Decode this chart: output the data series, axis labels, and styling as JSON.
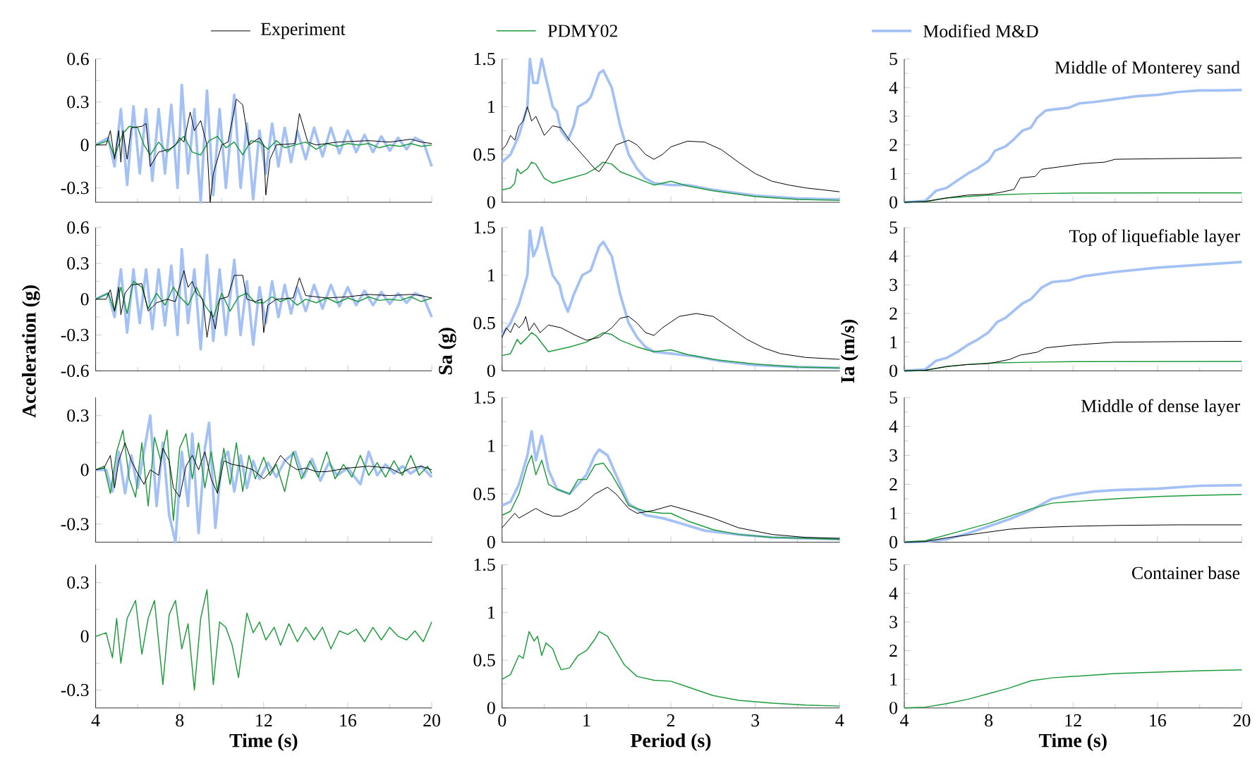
{
  "chart_data": [
    {
      "type": "line",
      "legend": "top",
      "tick_labels": "y",
      "xlim": [
        4,
        20
      ],
      "xticks": [
        4,
        8,
        12,
        16,
        20
      ],
      "ylim": [
        -0.4,
        0.6
      ],
      "yticks": [
        -0.3,
        0,
        0.3,
        0.6
      ],
      "series": [
        {
          "name": "Experiment",
          "color": "#000000",
          "x": [
            4,
            4.5,
            4.7,
            4.9,
            5.1,
            5.2,
            5.3,
            5.5,
            5.7,
            6.2,
            6.4,
            6.5,
            6.6,
            7,
            7.5,
            7.8,
            8.0,
            8.2,
            8.5,
            8.7,
            9.0,
            9.3,
            9.45,
            9.6,
            10,
            10.3,
            10.7,
            11,
            11.3,
            11.8,
            12,
            12.1,
            12.3,
            12.6,
            13.5,
            13.7,
            14.1,
            14.5,
            15.5,
            17,
            18,
            19,
            19.5,
            20
          ],
          "values": [
            0,
            0,
            0.1,
            -0.1,
            0.1,
            -0.12,
            0.1,
            -0.1,
            0.12,
            0.13,
            0.15,
            0,
            -0.15,
            -0.05,
            -0.03,
            0,
            0.05,
            0.02,
            0.23,
            0.1,
            0.17,
            0,
            -0.4,
            -0.2,
            0,
            0.02,
            0.32,
            0.28,
            0,
            0.05,
            0,
            -0.35,
            -0.1,
            0,
            0.01,
            0.22,
            0.02,
            0,
            0.02,
            0.03,
            0.02,
            0.04,
            0.02,
            0.01
          ]
        },
        {
          "name": "PDMY02",
          "color": "#1e9b3c",
          "x": [
            4,
            4.6,
            4.9,
            5.3,
            5.6,
            6.0,
            6.3,
            6.6,
            7.0,
            7.4,
            7.8,
            8.2,
            8.6,
            9.0,
            9.4,
            9.8,
            10.2,
            10.6,
            11.0,
            11.4,
            11.8,
            12.2,
            12.6,
            13.0,
            13.5,
            14.0,
            14.5,
            15.0,
            15.5,
            16.0,
            16.5,
            17.0,
            17.5,
            18.0,
            18.5,
            19.0,
            19.5,
            20
          ],
          "values": [
            0,
            0.03,
            -0.08,
            0.08,
            0.13,
            0.12,
            0,
            -0.07,
            0.02,
            -0.05,
            0,
            0.06,
            -0.05,
            -0.07,
            0.03,
            0.06,
            -0.02,
            0.02,
            -0.07,
            0.03,
            0.02,
            -0.03,
            0.03,
            -0.02,
            0,
            0.02,
            -0.03,
            0.01,
            -0.01,
            0.01,
            0,
            0.01,
            -0.02,
            0,
            -0.01,
            0.01,
            -0.01,
            0
          ]
        },
        {
          "name": "Modified M&D",
          "color": "#a3c1f5",
          "x": [
            4,
            4.6,
            4.9,
            5.2,
            5.5,
            5.8,
            6.1,
            6.4,
            6.7,
            7.0,
            7.3,
            7.6,
            7.9,
            8.1,
            8.4,
            8.7,
            9.0,
            9.3,
            9.6,
            9.9,
            10.2,
            10.6,
            10.9,
            11.2,
            11.5,
            11.8,
            12.1,
            12.4,
            12.7,
            13.0,
            13.3,
            13.6,
            14.0,
            14.4,
            14.8,
            15.2,
            15.6,
            16.0,
            16.4,
            16.8,
            17.2,
            17.6,
            18.0,
            18.4,
            18.8,
            19.2,
            19.6,
            20
          ],
          "values": [
            0,
            0.05,
            -0.15,
            0.25,
            -0.28,
            0.27,
            -0.2,
            0.25,
            -0.25,
            0.25,
            -0.2,
            0.28,
            -0.3,
            0.42,
            -0.2,
            0.25,
            -0.4,
            0.38,
            -0.35,
            0.25,
            -0.3,
            0.35,
            -0.3,
            0.15,
            -0.38,
            0.1,
            -0.2,
            0.15,
            -0.15,
            0.12,
            -0.12,
            0.1,
            -0.1,
            0.12,
            -0.08,
            0.12,
            -0.06,
            0.1,
            -0.05,
            0.07,
            -0.05,
            0.06,
            -0.04,
            0.05,
            -0.03,
            0.05,
            0.02,
            -0.15
          ]
        }
      ]
    },
    {
      "type": "line",
      "tick_labels": "y",
      "xlim": [
        0,
        4
      ],
      "xticks": [
        0,
        1,
        2,
        3,
        4
      ],
      "ylim": [
        0,
        1.5
      ],
      "yticks": [
        0,
        0.5,
        1,
        1.5
      ],
      "series": [
        {
          "color": "#000000",
          "x": [
            0,
            0.05,
            0.1,
            0.15,
            0.2,
            0.25,
            0.3,
            0.35,
            0.4,
            0.5,
            0.6,
            0.7,
            0.8,
            0.9,
            1.0,
            1.1,
            1.15,
            1.25,
            1.35,
            1.5,
            1.6,
            1.7,
            1.8,
            1.9,
            2.0,
            2.2,
            2.4,
            2.6,
            2.8,
            3.0,
            3.2,
            3.4,
            3.6,
            3.8,
            4.0
          ],
          "values": [
            0.55,
            0.6,
            0.7,
            0.65,
            0.8,
            0.85,
            1.0,
            0.85,
            0.9,
            0.7,
            0.8,
            0.78,
            0.65,
            0.55,
            0.45,
            0.35,
            0.32,
            0.45,
            0.6,
            0.65,
            0.6,
            0.5,
            0.45,
            0.5,
            0.58,
            0.64,
            0.63,
            0.55,
            0.42,
            0.3,
            0.22,
            0.18,
            0.15,
            0.13,
            0.11
          ]
        },
        {
          "color": "#1e9b3c",
          "x": [
            0,
            0.1,
            0.15,
            0.18,
            0.22,
            0.3,
            0.35,
            0.4,
            0.5,
            0.6,
            0.8,
            1.0,
            1.1,
            1.2,
            1.3,
            1.4,
            1.6,
            1.8,
            2.0,
            2.2,
            2.5,
            3.0,
            3.5,
            4.0
          ],
          "values": [
            0.13,
            0.15,
            0.2,
            0.35,
            0.3,
            0.35,
            0.42,
            0.4,
            0.25,
            0.2,
            0.25,
            0.3,
            0.35,
            0.42,
            0.4,
            0.32,
            0.25,
            0.18,
            0.22,
            0.17,
            0.12,
            0.06,
            0.03,
            0.02
          ]
        },
        {
          "color": "#a3c1f5",
          "x": [
            0,
            0.1,
            0.2,
            0.3,
            0.33,
            0.37,
            0.42,
            0.47,
            0.52,
            0.6,
            0.65,
            0.7,
            0.78,
            0.85,
            0.9,
            1.0,
            1.05,
            1.15,
            1.2,
            1.3,
            1.4,
            1.5,
            1.6,
            1.7,
            1.8,
            2.0,
            2.2,
            2.5,
            3.0,
            3.5,
            4.0
          ],
          "values": [
            0.42,
            0.5,
            0.7,
            1.0,
            1.5,
            1.25,
            1.25,
            1.5,
            1.3,
            1.0,
            0.95,
            0.75,
            0.65,
            0.8,
            1.0,
            1.05,
            1.1,
            1.35,
            1.38,
            1.2,
            0.8,
            0.5,
            0.35,
            0.25,
            0.2,
            0.18,
            0.18,
            0.13,
            0.07,
            0.04,
            0.03
          ]
        }
      ]
    },
    {
      "type": "line",
      "tick_labels": "y",
      "xlim": [
        4,
        20
      ],
      "xticks": [
        4,
        8,
        12,
        16,
        20
      ],
      "ylim": [
        0,
        5
      ],
      "yticks": [
        0,
        1,
        2,
        3,
        4,
        5
      ],
      "annotations": [
        "Middle of Monterey sand"
      ],
      "series": [
        {
          "color": "#000000",
          "x": [
            4,
            5,
            6,
            7,
            8,
            8.6,
            9.2,
            9.5,
            10.2,
            10.5,
            11.5,
            12.5,
            13.5,
            14,
            16,
            20
          ],
          "values": [
            0,
            0.03,
            0.15,
            0.25,
            0.28,
            0.35,
            0.45,
            0.85,
            0.9,
            1.15,
            1.25,
            1.35,
            1.4,
            1.5,
            1.52,
            1.55
          ]
        },
        {
          "color": "#1e9b3c",
          "x": [
            4,
            5,
            6,
            7,
            8,
            10,
            12,
            16,
            20
          ],
          "values": [
            0,
            0.02,
            0.15,
            0.2,
            0.25,
            0.3,
            0.32,
            0.33,
            0.33
          ]
        },
        {
          "color": "#a3c1f5",
          "x": [
            4,
            5,
            5.5,
            6,
            6.5,
            7,
            7.5,
            8,
            8.3,
            8.8,
            9.2,
            9.6,
            10,
            10.3,
            10.7,
            11.2,
            11.8,
            12.3,
            13,
            14,
            15,
            16,
            17,
            18,
            19,
            20
          ],
          "values": [
            0,
            0.05,
            0.4,
            0.5,
            0.75,
            1.0,
            1.2,
            1.45,
            1.8,
            1.95,
            2.2,
            2.5,
            2.6,
            2.95,
            3.2,
            3.25,
            3.3,
            3.45,
            3.5,
            3.6,
            3.7,
            3.75,
            3.85,
            3.9,
            3.9,
            3.92
          ]
        }
      ]
    },
    {
      "type": "line",
      "tick_labels": "y",
      "xlim": [
        4,
        20
      ],
      "xticks": [
        4,
        8,
        12,
        16,
        20
      ],
      "ylim": [
        -0.6,
        0.6
      ],
      "yticks": [
        -0.6,
        -0.3,
        0,
        0.3,
        0.6
      ],
      "ylabel": "Acceleration (g)",
      "series": [
        {
          "color": "#000000",
          "x": [
            4,
            4.5,
            4.7,
            4.9,
            5.1,
            5.2,
            5.4,
            5.7,
            6.2,
            6.5,
            6.9,
            7.4,
            7.8,
            8.2,
            8.4,
            8.6,
            8.8,
            9.1,
            9.3,
            9.5,
            9.7,
            9.9,
            10.3,
            10.6,
            11.0,
            11.2,
            11.6,
            11.9,
            12.0,
            12.2,
            12.6,
            13.4,
            13.7,
            14.0,
            15,
            16,
            17,
            18,
            19,
            19.5,
            20
          ],
          "values": [
            0,
            0,
            0.08,
            -0.1,
            0.1,
            -0.13,
            0.05,
            0.12,
            0.13,
            -0.1,
            -0.03,
            0,
            -0.02,
            0.24,
            0.1,
            0.15,
            0.05,
            0,
            -0.32,
            -0.1,
            -0.25,
            0,
            0.02,
            0.2,
            0.2,
            0,
            -0.02,
            0,
            -0.28,
            -0.05,
            0,
            0.01,
            0.18,
            0.03,
            0.01,
            0.02,
            0.04,
            0.03,
            0.04,
            0.03,
            0.01
          ]
        },
        {
          "color": "#1e9b3c",
          "x": [
            4,
            4.6,
            4.9,
            5.2,
            5.5,
            5.8,
            6.2,
            6.5,
            6.9,
            7.3,
            7.7,
            8.0,
            8.4,
            8.8,
            9.2,
            9.6,
            10.0,
            10.4,
            10.8,
            11.2,
            11.6,
            12.0,
            12.4,
            12.8,
            13.2,
            13.6,
            14,
            14.5,
            15,
            15.5,
            16,
            16.5,
            17,
            17.5,
            18,
            18.5,
            19,
            19.5,
            20
          ],
          "values": [
            0,
            0.05,
            -0.1,
            0.1,
            -0.12,
            0.15,
            0.1,
            -0.08,
            0.05,
            -0.05,
            0.1,
            0.02,
            -0.05,
            0.1,
            -0.05,
            -0.15,
            0.05,
            -0.1,
            0.02,
            0.05,
            -0.03,
            -0.03,
            0.02,
            -0.02,
            0.01,
            -0.05,
            0,
            -0.03,
            0.01,
            -0.03,
            0.01,
            -0.02,
            0.02,
            -0.01,
            0,
            -0.01,
            0.02,
            -0.02,
            0.01
          ]
        },
        {
          "color": "#a3c1f5",
          "x": [
            4,
            4.6,
            4.9,
            5.2,
            5.5,
            5.8,
            6.1,
            6.4,
            6.7,
            7.0,
            7.3,
            7.6,
            7.9,
            8.1,
            8.4,
            8.7,
            9.0,
            9.3,
            9.6,
            9.9,
            10.2,
            10.6,
            10.9,
            11.2,
            11.5,
            11.8,
            12.1,
            12.4,
            12.7,
            13.0,
            13.3,
            13.6,
            14.0,
            14.4,
            14.8,
            15.2,
            15.6,
            16.0,
            16.4,
            16.8,
            17.2,
            17.6,
            18.0,
            18.4,
            18.8,
            19.2,
            19.6,
            20
          ],
          "values": [
            0,
            0.05,
            -0.15,
            0.25,
            -0.28,
            0.25,
            -0.2,
            0.25,
            -0.25,
            0.25,
            -0.22,
            0.28,
            -0.3,
            0.42,
            -0.2,
            0.25,
            -0.42,
            0.37,
            -0.35,
            0.25,
            -0.3,
            0.33,
            -0.3,
            0.15,
            -0.38,
            0.1,
            -0.2,
            0.15,
            -0.15,
            0.12,
            -0.12,
            0.1,
            -0.1,
            0.12,
            -0.08,
            0.12,
            -0.06,
            0.1,
            -0.05,
            0.07,
            -0.05,
            0.06,
            -0.04,
            0.05,
            -0.03,
            0.05,
            0.02,
            -0.15
          ]
        }
      ]
    },
    {
      "type": "line",
      "tick_labels": "y",
      "xlim": [
        0,
        4
      ],
      "xticks": [
        0,
        1,
        2,
        3,
        4
      ],
      "ylim": [
        0,
        1.5
      ],
      "yticks": [
        0,
        0.5,
        1,
        1.5
      ],
      "ylabel": "Sa (g)",
      "series": [
        {
          "color": "#000000",
          "x": [
            0,
            0.05,
            0.1,
            0.15,
            0.2,
            0.25,
            0.28,
            0.32,
            0.38,
            0.45,
            0.55,
            0.7,
            0.85,
            1.0,
            1.15,
            1.3,
            1.4,
            1.5,
            1.6,
            1.7,
            1.8,
            1.9,
            2.1,
            2.3,
            2.5,
            2.7,
            2.9,
            3.1,
            3.3,
            3.6,
            4.0
          ],
          "values": [
            0.35,
            0.45,
            0.4,
            0.5,
            0.45,
            0.5,
            0.57,
            0.42,
            0.5,
            0.4,
            0.48,
            0.45,
            0.38,
            0.32,
            0.35,
            0.45,
            0.55,
            0.57,
            0.5,
            0.4,
            0.37,
            0.45,
            0.57,
            0.6,
            0.57,
            0.45,
            0.33,
            0.24,
            0.18,
            0.14,
            0.12
          ]
        },
        {
          "color": "#1e9b3c",
          "x": [
            0,
            0.1,
            0.18,
            0.22,
            0.3,
            0.35,
            0.4,
            0.55,
            0.8,
            1.0,
            1.2,
            1.3,
            1.4,
            1.6,
            1.8,
            2.0,
            2.2,
            2.5,
            3.0,
            3.5,
            4.0
          ],
          "values": [
            0.16,
            0.18,
            0.33,
            0.28,
            0.35,
            0.4,
            0.37,
            0.2,
            0.25,
            0.3,
            0.4,
            0.38,
            0.32,
            0.25,
            0.2,
            0.22,
            0.17,
            0.12,
            0.07,
            0.04,
            0.03
          ]
        },
        {
          "color": "#a3c1f5",
          "x": [
            0,
            0.1,
            0.2,
            0.3,
            0.33,
            0.37,
            0.42,
            0.47,
            0.53,
            0.6,
            0.68,
            0.72,
            0.78,
            0.85,
            0.95,
            1.05,
            1.15,
            1.2,
            1.3,
            1.4,
            1.5,
            1.6,
            1.7,
            1.8,
            2.0,
            2.3,
            2.6,
            3.0,
            3.5,
            4.0
          ],
          "values": [
            0.38,
            0.5,
            0.7,
            1.0,
            1.47,
            1.2,
            1.3,
            1.5,
            1.25,
            1.0,
            0.9,
            0.75,
            0.62,
            0.8,
            1.0,
            1.05,
            1.3,
            1.35,
            1.2,
            0.8,
            0.5,
            0.35,
            0.25,
            0.2,
            0.18,
            0.15,
            0.1,
            0.06,
            0.04,
            0.03
          ]
        }
      ]
    },
    {
      "type": "line",
      "tick_labels": "y",
      "xlim": [
        4,
        20
      ],
      "xticks": [
        4,
        8,
        12,
        16,
        20
      ],
      "ylim": [
        0,
        5
      ],
      "yticks": [
        0,
        1,
        2,
        3,
        4,
        5
      ],
      "ylabel": "Ia (m/s)",
      "annotations": [
        "Top of liquefiable layer"
      ],
      "series": [
        {
          "color": "#000000",
          "x": [
            4,
            5,
            6,
            7,
            8,
            9,
            9.5,
            10.3,
            10.7,
            12,
            14,
            17,
            20
          ],
          "values": [
            0,
            0.02,
            0.15,
            0.22,
            0.25,
            0.4,
            0.55,
            0.65,
            0.8,
            0.9,
            1.0,
            1.02,
            1.03
          ]
        },
        {
          "color": "#1e9b3c",
          "x": [
            4,
            5,
            6,
            7,
            8,
            10,
            12,
            20
          ],
          "values": [
            0,
            0.02,
            0.15,
            0.22,
            0.27,
            0.3,
            0.32,
            0.33
          ]
        },
        {
          "color": "#a3c1f5",
          "x": [
            4,
            5,
            5.5,
            6,
            6.5,
            7,
            7.5,
            8,
            8.4,
            8.8,
            9.2,
            9.6,
            10,
            10.5,
            11,
            11.8,
            12.5,
            14,
            16,
            18,
            20
          ],
          "values": [
            0,
            0.05,
            0.35,
            0.45,
            0.65,
            0.9,
            1.1,
            1.35,
            1.7,
            1.85,
            2.1,
            2.35,
            2.5,
            2.9,
            3.1,
            3.15,
            3.3,
            3.45,
            3.6,
            3.7,
            3.8
          ]
        }
      ]
    },
    {
      "type": "line",
      "tick_labels": "y",
      "xlim": [
        4,
        20
      ],
      "xticks": [
        4,
        8,
        12,
        16,
        20
      ],
      "ylim": [
        -0.4,
        0.4
      ],
      "yticks": [
        -0.3,
        0,
        0.3
      ],
      "series": [
        {
          "color": "#000000",
          "x": [
            4,
            4.4,
            4.7,
            4.9,
            5.1,
            5.4,
            5.7,
            6.0,
            6.3,
            6.6,
            7.0,
            7.2,
            7.5,
            7.7,
            8.0,
            8.3,
            8.6,
            8.9,
            9.2,
            9.5,
            9.8,
            10.1,
            10.5,
            11.0,
            11.5,
            12,
            12.4,
            12.8,
            13.2,
            13.6,
            14.0,
            14.5,
            15,
            16,
            17,
            18,
            18.5,
            19,
            19.5,
            20
          ],
          "values": [
            0,
            0.01,
            0.08,
            -0.1,
            0.05,
            0.15,
            0.05,
            -0.02,
            -0.08,
            0,
            -0.03,
            0.12,
            0.05,
            -0.1,
            -0.15,
            0.02,
            0.08,
            0,
            0.1,
            -0.05,
            -0.13,
            0.05,
            0.03,
            0.02,
            0,
            -0.05,
            0,
            0.08,
            0.03,
            0,
            0.01,
            -0.01,
            -0.01,
            0.01,
            0.02,
            0.01,
            -0.02,
            0.01,
            0.02,
            0
          ]
        },
        {
          "color": "#1e9b3c",
          "x": [
            4,
            4.4,
            4.7,
            5.0,
            5.3,
            5.6,
            5.9,
            6.2,
            6.5,
            6.8,
            7.1,
            7.4,
            7.7,
            8.0,
            8.3,
            8.6,
            8.9,
            9.2,
            9.5,
            9.8,
            10.1,
            10.4,
            10.7,
            11.0,
            11.3,
            11.6,
            12.0,
            12.3,
            12.6,
            13.0,
            13.4,
            13.8,
            14.2,
            14.6,
            15.0,
            15.4,
            15.8,
            16.2,
            16.6,
            17.0,
            17.4,
            17.8,
            18.2,
            18.6,
            19.0,
            19.4,
            19.8,
            20
          ],
          "values": [
            0,
            0.02,
            -0.13,
            0.1,
            0.22,
            -0.05,
            -0.15,
            0.15,
            -0.2,
            0.18,
            0.05,
            0.22,
            -0.28,
            0.12,
            0.2,
            -0.05,
            0.15,
            -0.1,
            0.1,
            -0.12,
            0.12,
            -0.08,
            0.15,
            -0.12,
            0.08,
            -0.05,
            0.07,
            -0.03,
            0.03,
            -0.12,
            0.1,
            -0.05,
            0.05,
            -0.04,
            0.1,
            -0.05,
            0.03,
            -0.04,
            0.08,
            -0.03,
            0.04,
            -0.04,
            0.05,
            -0.03,
            0.08,
            -0.03,
            0.02,
            -0.02
          ]
        },
        {
          "color": "#a3c1f5",
          "x": [
            4,
            4.5,
            4.8,
            5.1,
            5.4,
            5.7,
            6.0,
            6.6,
            6.9,
            7.2,
            7.5,
            7.8,
            8.1,
            8.4,
            8.6,
            8.9,
            9.2,
            9.4,
            9.7,
            10.0,
            10.3,
            10.6,
            10.9,
            11.2,
            11.5,
            11.8,
            12.2,
            12.6,
            13,
            13.5,
            13.9,
            14.3,
            14.7,
            15.1,
            15.5,
            16,
            16.6,
            17.0,
            17.4,
            17.8,
            18.2,
            18.6,
            19.0,
            19.5,
            20
          ],
          "values": [
            0,
            0,
            -0.12,
            0.1,
            -0.13,
            0.08,
            -0.1,
            0.3,
            -0.2,
            0.15,
            -0.25,
            -0.4,
            0.1,
            -0.2,
            0.2,
            -0.35,
            0.12,
            0.26,
            -0.32,
            0.05,
            0.1,
            -0.12,
            0.08,
            -0.1,
            0.05,
            -0.05,
            0.04,
            -0.04,
            0.05,
            0.1,
            -0.04,
            0.06,
            -0.06,
            0.04,
            -0.03,
            0.01,
            -0.08,
            0.1,
            -0.03,
            0.03,
            -0.02,
            0.02,
            -0.02,
            0.02,
            -0.04
          ]
        }
      ]
    },
    {
      "type": "line",
      "tick_labels": "y",
      "xlim": [
        0,
        4
      ],
      "xticks": [
        0,
        1,
        2,
        3,
        4
      ],
      "ylim": [
        0,
        1.5
      ],
      "yticks": [
        0,
        0.5,
        1,
        1.5
      ],
      "series": [
        {
          "color": "#000000",
          "x": [
            0,
            0.1,
            0.15,
            0.2,
            0.3,
            0.4,
            0.5,
            0.6,
            0.7,
            0.9,
            1.1,
            1.25,
            1.35,
            1.5,
            1.6,
            1.8,
            2.0,
            2.2,
            2.5,
            2.8,
            3.2,
            3.6,
            4.0
          ],
          "values": [
            0.15,
            0.25,
            0.3,
            0.25,
            0.3,
            0.35,
            0.3,
            0.27,
            0.27,
            0.35,
            0.5,
            0.57,
            0.5,
            0.35,
            0.3,
            0.33,
            0.38,
            0.33,
            0.25,
            0.15,
            0.08,
            0.05,
            0.04
          ]
        },
        {
          "color": "#1e9b3c",
          "x": [
            0,
            0.1,
            0.2,
            0.3,
            0.35,
            0.4,
            0.47,
            0.55,
            0.65,
            0.8,
            0.9,
            1.0,
            1.1,
            1.2,
            1.3,
            1.4,
            1.5,
            1.7,
            1.9,
            2.0,
            2.2,
            2.5,
            2.8,
            3.2,
            3.6,
            4.0
          ],
          "values": [
            0.28,
            0.32,
            0.5,
            0.8,
            0.9,
            0.7,
            0.85,
            0.6,
            0.55,
            0.5,
            0.65,
            0.65,
            0.8,
            0.82,
            0.7,
            0.55,
            0.38,
            0.32,
            0.3,
            0.3,
            0.22,
            0.13,
            0.08,
            0.05,
            0.04,
            0.03
          ]
        },
        {
          "color": "#a3c1f5",
          "x": [
            0,
            0.1,
            0.2,
            0.3,
            0.35,
            0.4,
            0.47,
            0.55,
            0.65,
            0.8,
            0.9,
            1.0,
            1.1,
            1.15,
            1.25,
            1.35,
            1.5,
            1.7,
            1.9,
            2.1,
            2.4,
            2.8,
            3.2,
            3.6,
            4.0
          ],
          "values": [
            0.38,
            0.42,
            0.6,
            0.9,
            1.15,
            0.85,
            1.1,
            0.75,
            0.55,
            0.5,
            0.6,
            0.7,
            0.9,
            0.96,
            0.9,
            0.7,
            0.4,
            0.28,
            0.25,
            0.2,
            0.12,
            0.08,
            0.05,
            0.04,
            0.03
          ]
        }
      ]
    },
    {
      "type": "line",
      "tick_labels": "y",
      "xlim": [
        4,
        20
      ],
      "xticks": [
        4,
        8,
        12,
        16,
        20
      ],
      "ylim": [
        0,
        5
      ],
      "yticks": [
        0,
        1,
        2,
        3,
        4,
        5
      ],
      "annotations": [
        "Middle of dense layer"
      ],
      "series": [
        {
          "color": "#000000",
          "x": [
            4,
            5,
            6,
            7,
            8,
            9,
            10,
            12,
            14,
            17,
            20
          ],
          "values": [
            0,
            0.02,
            0.15,
            0.25,
            0.35,
            0.45,
            0.5,
            0.55,
            0.58,
            0.6,
            0.6
          ]
        },
        {
          "color": "#1e9b3c",
          "x": [
            4,
            5,
            6,
            7,
            8,
            9,
            10,
            11,
            12,
            14,
            16,
            18,
            20
          ],
          "values": [
            0,
            0.05,
            0.25,
            0.45,
            0.65,
            0.9,
            1.15,
            1.35,
            1.4,
            1.5,
            1.58,
            1.62,
            1.65
          ]
        },
        {
          "color": "#a3c1f5",
          "x": [
            4,
            5,
            6,
            7,
            8,
            9,
            10,
            11,
            12,
            13,
            14,
            16,
            18,
            20
          ],
          "values": [
            0,
            0.02,
            0.1,
            0.3,
            0.55,
            0.8,
            1.1,
            1.5,
            1.65,
            1.75,
            1.8,
            1.85,
            1.95,
            1.97
          ]
        }
      ]
    },
    {
      "type": "line",
      "xlim": [
        4,
        20
      ],
      "xticks": [
        4,
        8,
        12,
        16,
        20
      ],
      "ylim": [
        -0.4,
        0.4
      ],
      "yticks": [
        -0.3,
        0,
        0.3
      ],
      "xlabel": "Time (s)",
      "series": [
        {
          "color": "#1e9b3c",
          "x": [
            4,
            4.5,
            4.8,
            5.0,
            5.2,
            5.5,
            5.9,
            6.2,
            6.5,
            6.8,
            7.2,
            7.5,
            7.8,
            8.1,
            8.4,
            8.7,
            9.0,
            9.3,
            9.6,
            9.9,
            10.2,
            10.5,
            10.8,
            11.2,
            11.5,
            11.8,
            12.1,
            12.5,
            12.8,
            13.2,
            13.6,
            14.0,
            14.4,
            14.8,
            15.2,
            15.6,
            16.0,
            16.4,
            16.8,
            17.2,
            17.6,
            18.0,
            18.4,
            18.8,
            19.2,
            19.6,
            20
          ],
          "values": [
            0,
            0.02,
            -0.12,
            0.1,
            -0.15,
            0.1,
            0.2,
            -0.1,
            0.1,
            0.2,
            -0.27,
            0.12,
            0.2,
            -0.07,
            0.07,
            -0.3,
            0.1,
            0.26,
            -0.27,
            0.08,
            0.05,
            -0.05,
            -0.23,
            0.13,
            0.02,
            0.08,
            -0.02,
            0.05,
            -0.05,
            0.07,
            -0.03,
            0.05,
            -0.02,
            0.05,
            -0.07,
            0.03,
            0.01,
            0.04,
            -0.03,
            0.05,
            -0.02,
            0.05,
            0,
            -0.02,
            0.03,
            -0.03,
            0.08
          ]
        }
      ]
    },
    {
      "type": "line",
      "xlim": [
        0,
        4
      ],
      "xticks": [
        0,
        1,
        2,
        3,
        4
      ],
      "ylim": [
        0,
        1.5
      ],
      "yticks": [
        0,
        0.5,
        1,
        1.5
      ],
      "xlabel": "Period (s)",
      "series": [
        {
          "color": "#1e9b3c",
          "x": [
            0,
            0.1,
            0.15,
            0.2,
            0.25,
            0.32,
            0.38,
            0.42,
            0.47,
            0.52,
            0.6,
            0.65,
            0.7,
            0.8,
            0.9,
            1.0,
            1.1,
            1.15,
            1.25,
            1.35,
            1.45,
            1.6,
            1.8,
            2.0,
            2.2,
            2.5,
            2.8,
            3.2,
            3.6,
            4.0
          ],
          "values": [
            0.3,
            0.35,
            0.45,
            0.55,
            0.52,
            0.8,
            0.7,
            0.75,
            0.55,
            0.68,
            0.62,
            0.5,
            0.4,
            0.42,
            0.55,
            0.6,
            0.72,
            0.8,
            0.75,
            0.6,
            0.45,
            0.33,
            0.29,
            0.28,
            0.22,
            0.13,
            0.08,
            0.05,
            0.03,
            0.02
          ]
        }
      ]
    },
    {
      "type": "line",
      "xlim": [
        4,
        20
      ],
      "xticks": [
        4,
        8,
        12,
        16,
        20
      ],
      "ylim": [
        0,
        5
      ],
      "yticks": [
        0,
        1,
        2,
        3,
        4,
        5
      ],
      "xlabel": "Time (s)",
      "annotations": [
        "Container base"
      ],
      "series": [
        {
          "color": "#1e9b3c",
          "x": [
            4,
            5,
            6,
            7,
            8,
            9,
            10,
            11,
            12,
            14,
            16,
            18,
            20
          ],
          "values": [
            0,
            0.03,
            0.15,
            0.3,
            0.5,
            0.7,
            0.95,
            1.05,
            1.1,
            1.2,
            1.25,
            1.3,
            1.33
          ]
        }
      ]
    }
  ]
}
